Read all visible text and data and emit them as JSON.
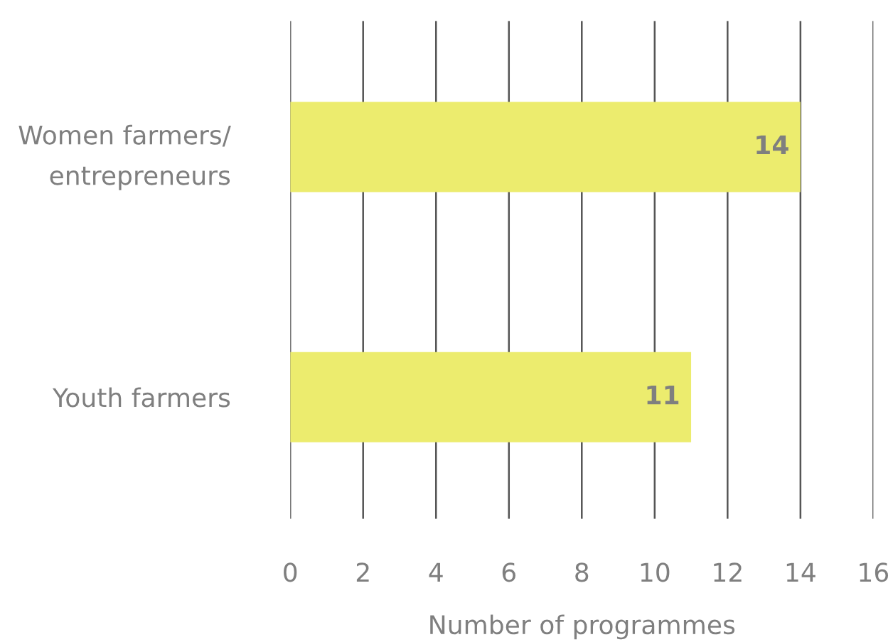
{
  "chart_data": {
    "type": "bar",
    "orientation": "horizontal",
    "xlabel": "Number of programmes",
    "categories": [
      "Women farmers/\nentrepreneurs",
      "Youth farmers"
    ],
    "values": [
      14,
      11
    ],
    "color": "#ecec6e",
    "data_labels": true,
    "xlim": [
      0,
      16
    ],
    "xticks": [
      0,
      2,
      4,
      6,
      8,
      10,
      12,
      14,
      16
    ],
    "grid": "x"
  }
}
